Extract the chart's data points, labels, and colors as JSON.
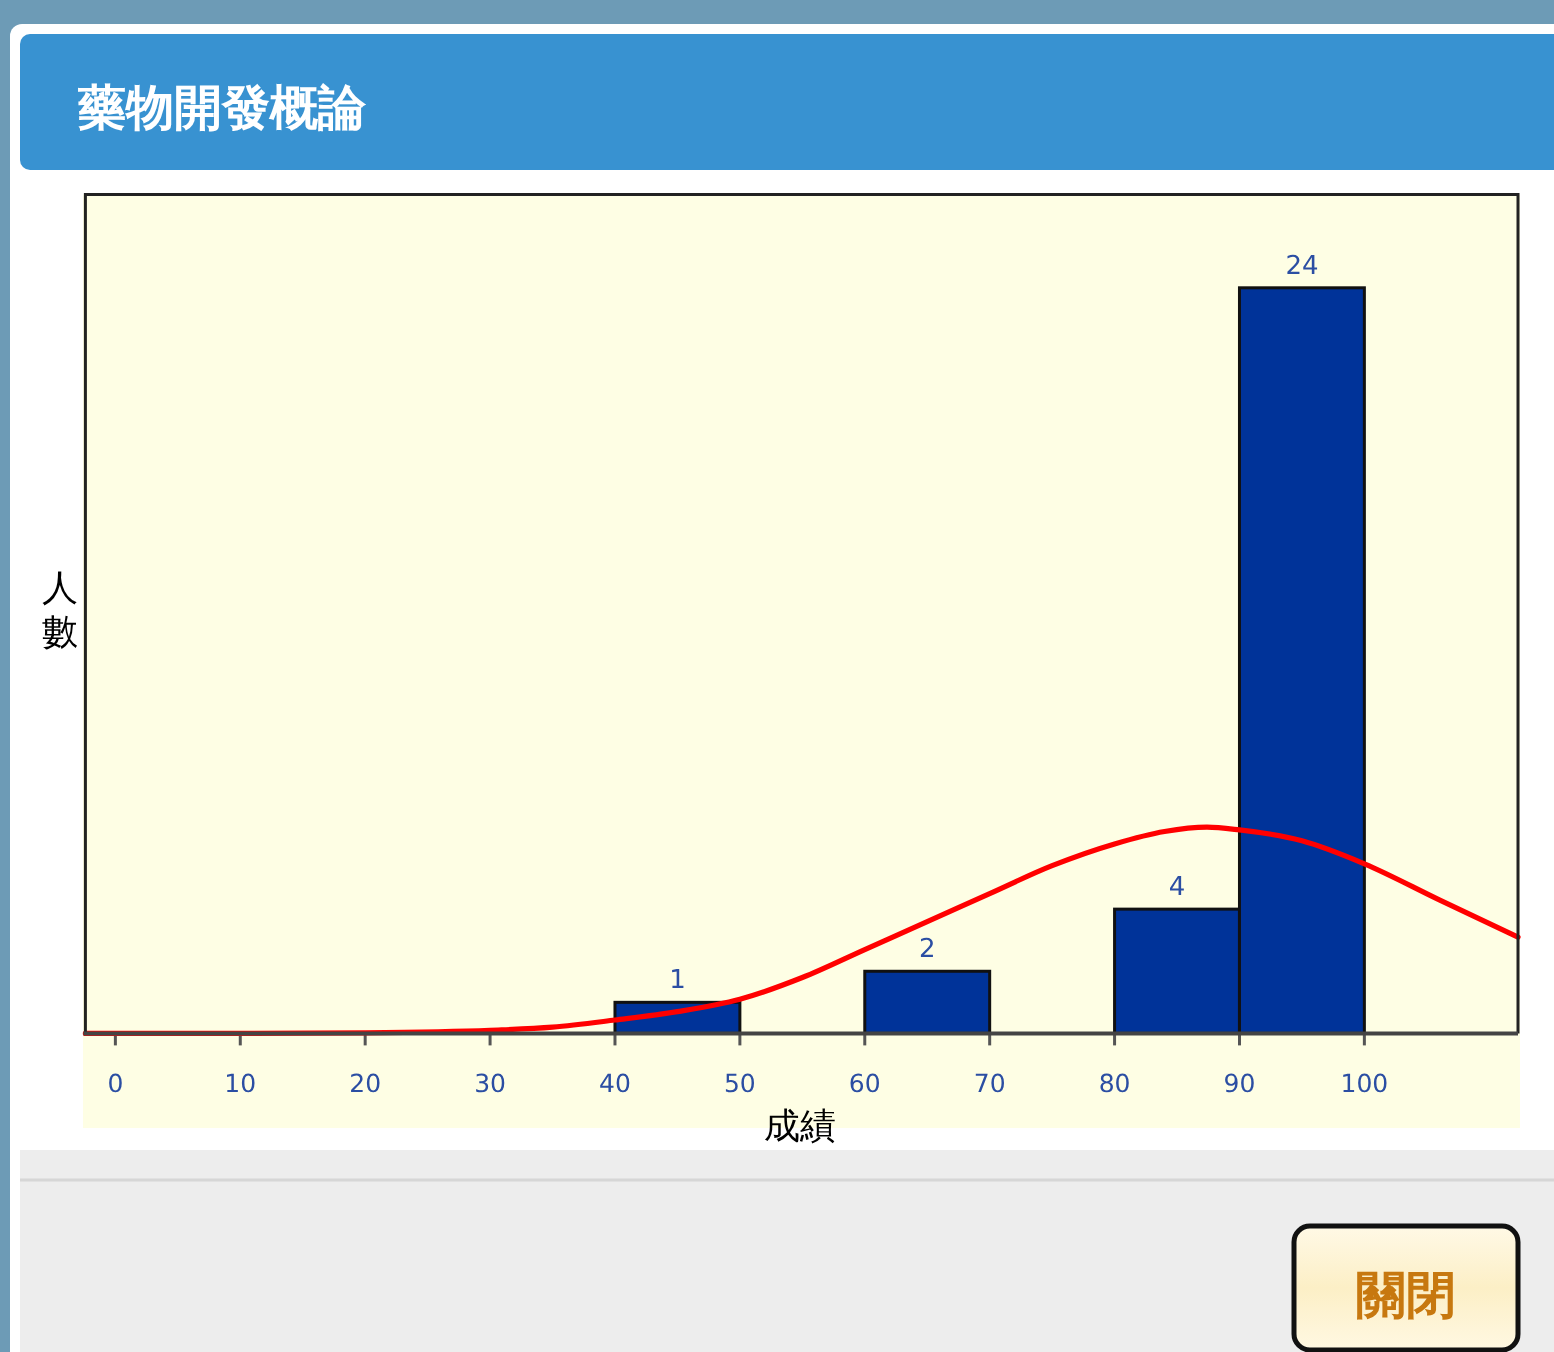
{
  "chart_data": {
    "type": "histogram",
    "title": "藥物開發概論",
    "xlabel": "成績",
    "ylabel": "人數",
    "bins": [
      40,
      50,
      60,
      70,
      80,
      90,
      100
    ],
    "values": [
      1,
      0,
      2,
      0,
      4,
      24
    ],
    "value_labels": [
      "1",
      null,
      "2",
      null,
      "4",
      "24"
    ],
    "color": "#003399",
    "series": [
      {
        "type": "line",
        "color": "#ff0000",
        "x": [
          -2.4,
          10,
          20,
          30,
          35,
          40,
          45,
          50,
          55,
          60,
          65,
          70,
          75,
          80,
          84,
          87.4,
          90,
          95,
          100,
          106,
          112.3
        ],
        "values": [
          0,
          0,
          0.02,
          0.1,
          0.2,
          0.43,
          0.7,
          1.1,
          1.8,
          2.7,
          3.6,
          4.5,
          5.4,
          6.1,
          6.5,
          6.64,
          6.55,
          6.2,
          5.46,
          4.3,
          3.1
        ]
      }
    ],
    "xlim": [
      -2.4,
      112.3
    ],
    "ylim": [
      0,
      27
    ],
    "xticks": [
      0,
      10,
      20,
      30,
      40,
      50,
      60,
      70,
      80,
      90,
      100
    ],
    "tick_labels": "x",
    "annotations": [
      "關閉"
    ]
  }
}
